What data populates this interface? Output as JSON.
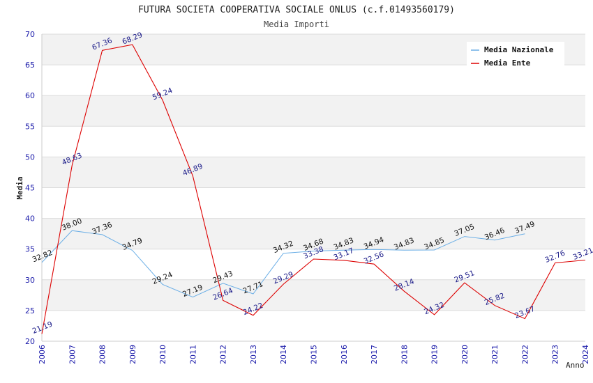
{
  "chart_data": {
    "type": "line",
    "title": "FUTURA SOCIETA COOPERATIVA SOCIALE ONLUS (c.f.01493560179)",
    "subtitle": "Media Importi",
    "xlabel": "Anno",
    "ylabel": "Media",
    "ylim": [
      20,
      70
    ],
    "yticks": [
      20,
      25,
      30,
      35,
      40,
      45,
      50,
      55,
      60,
      65,
      70
    ],
    "x": [
      "2006",
      "2007",
      "2008",
      "2009",
      "2010",
      "2011",
      "2012",
      "2013",
      "2014",
      "2015",
      "2016",
      "2017",
      "2018",
      "2019",
      "2020",
      "2021",
      "2022",
      "2023",
      "2024"
    ],
    "grid": "horizontal",
    "legend_position": "top-right",
    "series": [
      {
        "name": "Media Nazionale",
        "color": "#6aaee6",
        "values": [
          32.82,
          38.0,
          37.36,
          34.79,
          29.24,
          27.19,
          29.43,
          27.71,
          34.32,
          34.68,
          34.83,
          34.94,
          34.83,
          34.85,
          37.05,
          36.46,
          37.49,
          null,
          null
        ],
        "labels": [
          "32.82",
          "38.00",
          "37.36",
          "34.79",
          "29.24",
          "27.19",
          "29.43",
          "27.71",
          "34.32",
          "34.68",
          "34.83",
          "34.94",
          "34.83",
          "34.85",
          "37.05",
          "36.46",
          "37.49",
          null,
          null
        ]
      },
      {
        "name": "Media Ente",
        "color": "#dd0000",
        "values": [
          21.19,
          48.63,
          67.36,
          68.29,
          59.24,
          46.89,
          26.64,
          24.22,
          29.29,
          33.38,
          33.17,
          32.56,
          28.14,
          24.32,
          29.51,
          25.82,
          23.67,
          32.76,
          33.21
        ],
        "labels": [
          "21.19",
          "48.63",
          "67.36",
          "68.29",
          "59.24",
          "46.89",
          "26.64",
          "24.22",
          "29.29",
          "33.38",
          "33.17",
          "32.56",
          "28.14",
          "24.32",
          "29.51",
          "25.82",
          "23.67",
          "32.76",
          "33.21"
        ]
      }
    ]
  }
}
